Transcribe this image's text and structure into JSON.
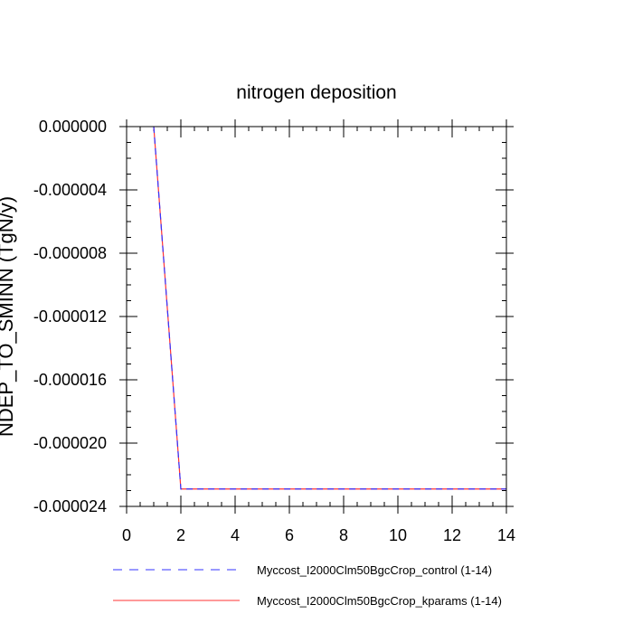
{
  "chart_data": {
    "type": "line",
    "title": "nitrogen deposition",
    "xlabel": "",
    "ylabel": "NDEP_TO_SMINN  (TgN/y)",
    "xlim": [
      0,
      14
    ],
    "ylim": [
      -2.4e-05,
      0.0
    ],
    "xticks": [
      0,
      2,
      4,
      6,
      8,
      10,
      12,
      14
    ],
    "xtick_labels": [
      "0",
      "2",
      "4",
      "6",
      "8",
      "10",
      "12",
      "14"
    ],
    "yticks": [
      0,
      -4e-06,
      -8e-06,
      -1.2e-05,
      -1.6e-05,
      -2e-05,
      -2.4e-05
    ],
    "ytick_labels": [
      "0.000000",
      "-0.000004",
      "-0.000008",
      "-0.000012",
      "-0.000016",
      "-0.000020",
      "-0.000024"
    ],
    "grid": false,
    "legend_position": "bottom",
    "series": [
      {
        "name": "Myccost_I2000Clm50BgcCrop_control (1-14)",
        "color": "#3333ff",
        "style": "dashed",
        "x": [
          1,
          2,
          3,
          4,
          5,
          6,
          7,
          8,
          9,
          10,
          11,
          12,
          13,
          14
        ],
        "y": [
          0,
          -2.29e-05,
          -2.29e-05,
          -2.29e-05,
          -2.29e-05,
          -2.29e-05,
          -2.29e-05,
          -2.29e-05,
          -2.29e-05,
          -2.29e-05,
          -2.29e-05,
          -2.29e-05,
          -2.29e-05,
          -2.29e-05
        ]
      },
      {
        "name": "Myccost_I2000Clm50BgcCrop_kparams (1-14)",
        "color": "#ff3333",
        "style": "solid",
        "x": [
          1,
          2,
          3,
          4,
          5,
          6,
          7,
          8,
          9,
          10,
          11,
          12,
          13,
          14
        ],
        "y": [
          0,
          -2.29e-05,
          -2.29e-05,
          -2.29e-05,
          -2.29e-05,
          -2.29e-05,
          -2.29e-05,
          -2.29e-05,
          -2.29e-05,
          -2.29e-05,
          -2.29e-05,
          -2.29e-05,
          -2.29e-05,
          -2.29e-05
        ]
      }
    ]
  }
}
